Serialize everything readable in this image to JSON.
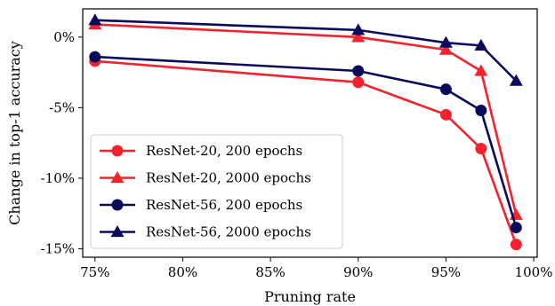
{
  "chart_data": {
    "type": "line",
    "xlabel": "Pruning rate",
    "ylabel": "Change in top-1 accuracy",
    "xlim": [
      74.3,
      100.2
    ],
    "ylim": [
      -15.6,
      2.0
    ],
    "x_ticks": [
      75,
      80,
      85,
      90,
      95,
      100
    ],
    "x_tick_labels": [
      "75%",
      "80%",
      "85%",
      "90%",
      "95%",
      "100%"
    ],
    "y_ticks": [
      0,
      -5,
      -10,
      -15
    ],
    "y_tick_labels": [
      "0%",
      "-5%",
      "-10%",
      "-15%"
    ],
    "grid": false,
    "legend_position": "lower-left",
    "series": [
      {
        "name": "ResNet-20, 200 epochs",
        "color": "#f5222d",
        "marker": "circle",
        "x": [
          75,
          90,
          95,
          97,
          99
        ],
        "y": [
          -1.7,
          -3.2,
          -5.5,
          -7.9,
          -14.7
        ]
      },
      {
        "name": "ResNet-20, 2000 epochs",
        "color": "#f5222d",
        "marker": "triangle",
        "x": [
          75,
          90,
          95,
          97,
          99
        ],
        "y": [
          0.9,
          0.0,
          -0.9,
          -2.4,
          -12.6
        ]
      },
      {
        "name": "ResNet-56, 200 epochs",
        "color": "#0b0b5c",
        "marker": "circle",
        "x": [
          75,
          90,
          95,
          97,
          99
        ],
        "y": [
          -1.4,
          -2.4,
          -3.7,
          -5.2,
          -13.5
        ]
      },
      {
        "name": "ResNet-56, 2000 epochs",
        "color": "#0b0b5c",
        "marker": "triangle",
        "x": [
          75,
          90,
          95,
          97,
          99
        ],
        "y": [
          1.2,
          0.5,
          -0.4,
          -0.6,
          -3.1
        ]
      }
    ]
  }
}
